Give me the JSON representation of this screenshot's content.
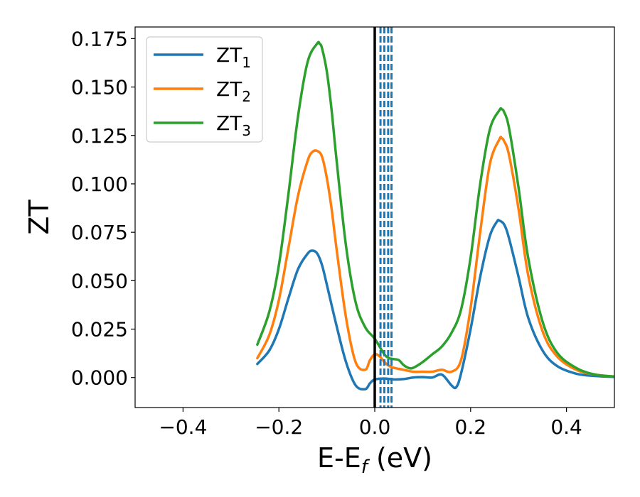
{
  "chart_data": {
    "type": "line",
    "title": "",
    "xlabel": "E-E",
    "xlabel_sub": "f",
    "xlabel_unit": " (eV)",
    "ylabel": "ZT",
    "xlim": [
      -0.5,
      0.5
    ],
    "ylim": [
      -0.0155,
      0.181
    ],
    "xticks": [
      -0.4,
      -0.2,
      0.0,
      0.2,
      0.4
    ],
    "xtick_labels": [
      "−0.4",
      "−0.2",
      "0.0",
      "0.2",
      "0.4"
    ],
    "yticks": [
      0.0,
      0.025,
      0.05,
      0.075,
      0.1,
      0.125,
      0.15,
      0.175
    ],
    "ytick_labels": [
      "0.000",
      "0.025",
      "0.050",
      "0.075",
      "0.100",
      "0.125",
      "0.150",
      "0.175"
    ],
    "grid": false,
    "legend_position": "top-left",
    "vertical_lines": [
      {
        "x": 0.0,
        "color": "#000000",
        "style": "solid"
      },
      {
        "x": 0.012,
        "color": "#1f77b4",
        "style": "dashed"
      },
      {
        "x": 0.02,
        "color": "#1f77b4",
        "style": "dashed"
      },
      {
        "x": 0.028,
        "color": "#1f77b4",
        "style": "dashed"
      },
      {
        "x": 0.035,
        "color": "#1f77b4",
        "style": "dashed"
      }
    ],
    "series": [
      {
        "name": "ZT",
        "subscript": "1",
        "color": "#1f77b4",
        "x": [
          -0.245,
          -0.22,
          -0.2,
          -0.18,
          -0.16,
          -0.14,
          -0.13,
          -0.12,
          -0.11,
          -0.1,
          -0.08,
          -0.06,
          -0.04,
          -0.02,
          -0.01,
          0.0,
          0.02,
          0.04,
          0.06,
          0.08,
          0.1,
          0.12,
          0.14,
          0.16,
          0.17,
          0.18,
          0.2,
          0.22,
          0.24,
          0.255,
          0.26,
          0.27,
          0.28,
          0.3,
          0.32,
          0.35,
          0.38,
          0.42,
          0.46,
          0.5
        ],
        "y": [
          0.007,
          0.014,
          0.025,
          0.041,
          0.056,
          0.064,
          0.0655,
          0.064,
          0.058,
          0.048,
          0.027,
          0.008,
          -0.004,
          -0.006,
          -0.003,
          -0.001,
          -0.0005,
          -0.001,
          -0.0008,
          0.0,
          0.0002,
          0.0,
          0.0015,
          -0.004,
          -0.005,
          0.002,
          0.025,
          0.052,
          0.073,
          0.0805,
          0.081,
          0.079,
          0.072,
          0.052,
          0.031,
          0.014,
          0.006,
          0.002,
          0.0008,
          0.0003
        ]
      },
      {
        "name": "ZT",
        "subscript": "2",
        "color": "#ff7f0e",
        "x": [
          -0.245,
          -0.22,
          -0.2,
          -0.18,
          -0.16,
          -0.14,
          -0.13,
          -0.12,
          -0.11,
          -0.1,
          -0.09,
          -0.08,
          -0.06,
          -0.04,
          -0.02,
          -0.01,
          0.0,
          0.01,
          0.02,
          0.03,
          0.04,
          0.06,
          0.08,
          0.1,
          0.12,
          0.14,
          0.16,
          0.18,
          0.2,
          0.22,
          0.24,
          0.26,
          0.265,
          0.27,
          0.28,
          0.3,
          0.32,
          0.35,
          0.38,
          0.42,
          0.46,
          0.5
        ],
        "y": [
          0.01,
          0.022,
          0.04,
          0.067,
          0.094,
          0.112,
          0.1165,
          0.117,
          0.114,
          0.103,
          0.087,
          0.067,
          0.031,
          0.008,
          0.004,
          0.009,
          0.012,
          0.011,
          0.008,
          0.006,
          0.005,
          0.004,
          0.003,
          0.003,
          0.003,
          0.004,
          0.003,
          0.009,
          0.036,
          0.075,
          0.11,
          0.123,
          0.1235,
          0.122,
          0.115,
          0.087,
          0.053,
          0.024,
          0.011,
          0.004,
          0.0015,
          0.0005
        ]
      },
      {
        "name": "ZT",
        "subscript": "3",
        "color": "#2ca02c",
        "x": [
          -0.245,
          -0.22,
          -0.2,
          -0.18,
          -0.16,
          -0.14,
          -0.12,
          -0.115,
          -0.11,
          -0.1,
          -0.09,
          -0.08,
          -0.06,
          -0.04,
          -0.02,
          0.0,
          0.02,
          0.03,
          0.04,
          0.05,
          0.06,
          0.07,
          0.08,
          0.1,
          0.12,
          0.14,
          0.16,
          0.18,
          0.2,
          0.22,
          0.24,
          0.26,
          0.265,
          0.27,
          0.28,
          0.3,
          0.32,
          0.35,
          0.38,
          0.42,
          0.46,
          0.5
        ],
        "y": [
          0.017,
          0.034,
          0.058,
          0.095,
          0.135,
          0.163,
          0.1725,
          0.1723,
          0.17,
          0.158,
          0.138,
          0.113,
          0.068,
          0.039,
          0.026,
          0.02,
          0.012,
          0.01,
          0.0095,
          0.009,
          0.0065,
          0.005,
          0.005,
          0.008,
          0.012,
          0.016,
          0.023,
          0.035,
          0.062,
          0.1,
          0.128,
          0.138,
          0.1385,
          0.137,
          0.129,
          0.098,
          0.062,
          0.029,
          0.013,
          0.005,
          0.0015,
          0.0005
        ]
      }
    ]
  }
}
